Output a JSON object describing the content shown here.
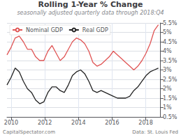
{
  "chart_data": {
    "type": "line",
    "title": "Rolling 1-Year % Change",
    "subtitle": "seasonally adjusted quarterly data through 2018:Q4",
    "annotations": [
      "CapitalSpectator.com",
      "Data: St. Louis Fed"
    ],
    "x": [
      2009.75,
      2009.9932,
      2010.2365,
      2010.4797,
      2010.723,
      2010.9662,
      2011.2095,
      2011.4527,
      2011.6959,
      2011.9392,
      2012.1824,
      2012.4257,
      2012.6689,
      2012.9122,
      2013.1554,
      2013.3986,
      2013.6419,
      2013.8851,
      2014.1284,
      2014.3716,
      2014.6149,
      2014.8581,
      2015.1014,
      2015.3446,
      2015.5878,
      2015.8311,
      2016.0743,
      2016.3176,
      2016.5608,
      2016.8041,
      2017.0473,
      2017.2905,
      2017.5338,
      2017.777,
      2018.0203,
      2018.2635,
      2018.5068,
      2018.75
    ],
    "series": [
      {
        "name": "Nominal GDP",
        "color": "#e05555",
        "values": [
          3.8,
          4.2,
          4.7,
          4.8,
          4.5,
          4.1,
          4.1,
          3.7,
          3.5,
          3.5,
          4.0,
          4.3,
          3.9,
          3.5,
          3.7,
          4.1,
          4.5,
          4.7,
          4.6,
          4.4,
          4.0,
          3.4,
          3.2,
          3.3,
          3.5,
          3.7,
          4.0,
          3.8,
          3.6,
          3.4,
          3.2,
          3.0,
          3.2,
          3.5,
          3.9,
          4.4,
          5.1,
          5.4
        ]
      },
      {
        "name": "Real GDP",
        "color": "#222222",
        "values": [
          2.2,
          2.6,
          3.1,
          2.9,
          2.4,
          2.0,
          1.8,
          1.4,
          1.2,
          1.3,
          1.8,
          2.1,
          2.1,
          1.9,
          1.8,
          2.2,
          2.7,
          2.9,
          3.0,
          2.8,
          2.4,
          1.9,
          1.8,
          1.9,
          1.8,
          1.7,
          1.6,
          1.5,
          1.5,
          1.5,
          1.6,
          1.9,
          2.1,
          2.4,
          2.7,
          2.9,
          3.0,
          3.1
        ]
      }
    ],
    "xlim": [
      2009.75,
      2018.85
    ],
    "xticks": [
      2010,
      2012,
      2014,
      2016,
      2018
    ],
    "ylim": [
      0.5,
      5.5
    ],
    "yticks": [
      {
        "value": 0.5,
        "label": "0.5%"
      },
      {
        "value": 1.0,
        "label": "1%"
      },
      {
        "value": 1.5,
        "label": "1.5%"
      },
      {
        "value": 2.0,
        "label": "2%"
      },
      {
        "value": 2.5,
        "label": "2.5%"
      },
      {
        "value": 3.0,
        "label": "3%"
      },
      {
        "value": 3.5,
        "label": "3.5%"
      },
      {
        "value": 4.0,
        "label": "4%"
      },
      {
        "value": 4.5,
        "label": "4.5%"
      },
      {
        "value": 5.0,
        "label": "5%"
      },
      {
        "value": 5.5,
        "label": "5.5%"
      }
    ],
    "grid": true,
    "legend": "upper left"
  }
}
